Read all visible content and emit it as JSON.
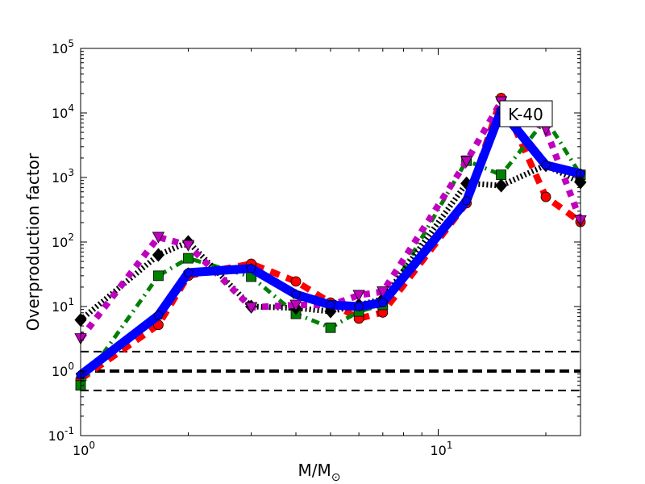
{
  "chart_data": {
    "type": "line",
    "title": "",
    "xlabel": "M/M",
    "xlabel_sub": "⊙",
    "ylabel": "Overproduction factor",
    "xscale": "log",
    "yscale": "log",
    "xlim": [
      1,
      25
    ],
    "ylim": [
      0.1,
      100000
    ],
    "x_ticks": [
      {
        "value": 1,
        "base": "10",
        "exp": "0"
      },
      {
        "value": 10,
        "base": "10",
        "exp": "1"
      }
    ],
    "y_ticks": [
      {
        "value": 0.1,
        "base": "10",
        "exp": "-1"
      },
      {
        "value": 1,
        "base": "10",
        "exp": "0"
      },
      {
        "value": 10,
        "base": "10",
        "exp": "1"
      },
      {
        "value": 100,
        "base": "10",
        "exp": "2"
      },
      {
        "value": 1000,
        "base": "10",
        "exp": "3"
      },
      {
        "value": 10000,
        "base": "10",
        "exp": "4"
      },
      {
        "value": 100000,
        "base": "10",
        "exp": "5"
      }
    ],
    "annotation": "K-40",
    "x": [
      1,
      1.65,
      2,
      3,
      4,
      5,
      6,
      7,
      12,
      15,
      20,
      25
    ],
    "series": [
      {
        "name": "red-circles",
        "color": "#ff0000",
        "marker": "circle",
        "style": "dashed",
        "values": [
          0.75,
          5.2,
          30,
          46,
          24.5,
          11.5,
          6.5,
          8.1,
          400,
          17000,
          500,
          205
        ]
      },
      {
        "name": "green-squares",
        "color": "#008000",
        "marker": "square",
        "style": "dashdot",
        "values": [
          0.6,
          30,
          56,
          29,
          7.7,
          4.7,
          8.4,
          10.6,
          1820,
          1100,
          8000,
          1100
        ]
      },
      {
        "name": "black-diamonds",
        "color": "#000000",
        "marker": "diamond",
        "style": "dotted",
        "values": [
          6.2,
          63,
          100,
          10,
          9.5,
          8.4,
          10.6,
          13,
          810,
          750,
          1550,
          840
        ]
      },
      {
        "name": "magenta-triangles",
        "color": "#bf00bf",
        "marker": "triangle-down",
        "style": "dotted-thick",
        "values": [
          3.2,
          119,
          89,
          9.7,
          10.6,
          10.5,
          15,
          17,
          1780,
          15000,
          5600,
          215
        ]
      },
      {
        "name": "blue-pentagons",
        "color": "#0000ff",
        "marker": "pentagon",
        "style": "solid",
        "values": [
          0.87,
          7.3,
          33.5,
          39,
          15.4,
          10.6,
          10,
          11.5,
          435,
          11000,
          1550,
          1150
        ]
      }
    ],
    "reference_lines": [
      {
        "value": 2,
        "style": "dashed"
      },
      {
        "value": 1,
        "style": "dashed-thick"
      },
      {
        "value": 0.5,
        "style": "dashed"
      }
    ],
    "grid": false,
    "legend": "none"
  }
}
